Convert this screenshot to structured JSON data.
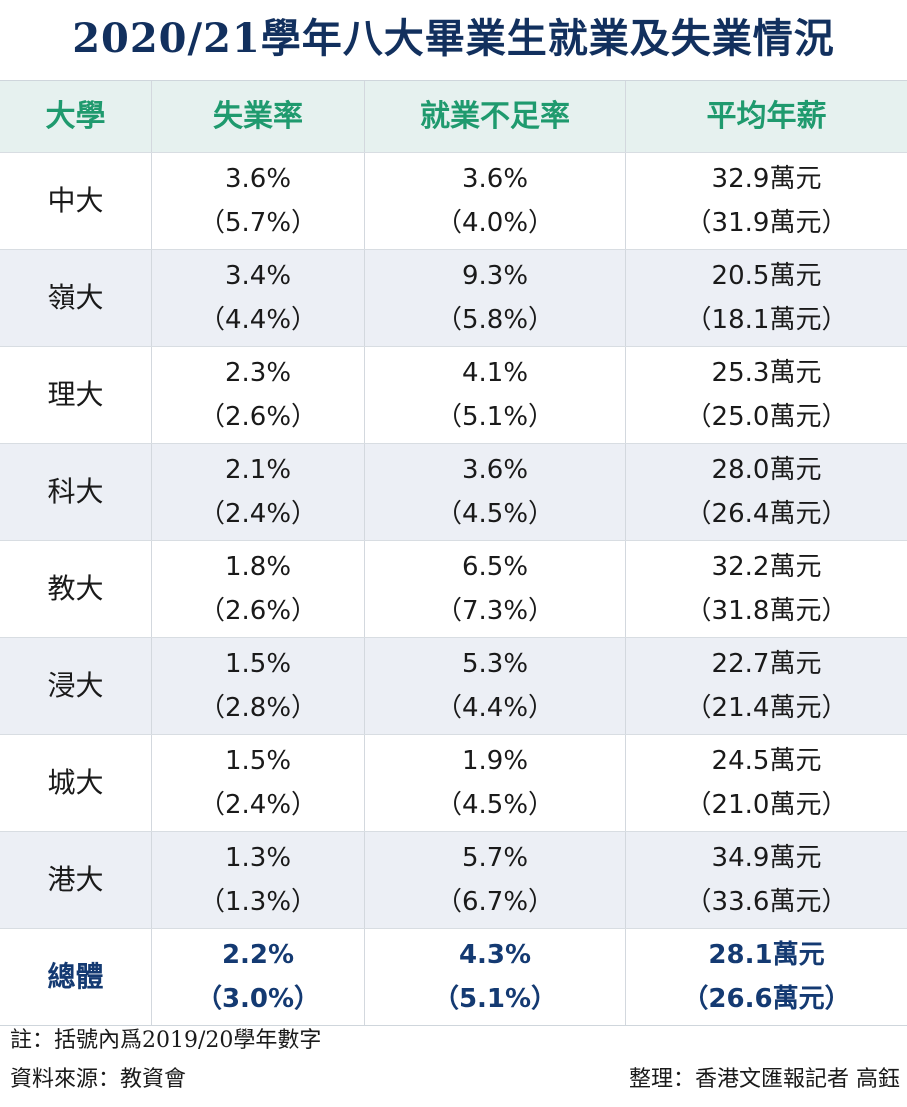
{
  "title": "2020/21學年八大畢業生就業及失業情況",
  "table": {
    "headers": [
      "大學",
      "失業率",
      "就業不足率",
      "平均年薪"
    ],
    "rows": [
      {
        "university": "中大",
        "unemployment": "3.6%",
        "unemployment_prev": "（5.7%）",
        "underemployment": "3.6%",
        "underemployment_prev": "（4.0%）",
        "salary": "32.9萬元",
        "salary_prev": "（31.9萬元）"
      },
      {
        "university": "嶺大",
        "unemployment": "3.4%",
        "unemployment_prev": "（4.4%）",
        "underemployment": "9.3%",
        "underemployment_prev": "（5.8%）",
        "salary": "20.5萬元",
        "salary_prev": "（18.1萬元）"
      },
      {
        "university": "理大",
        "unemployment": "2.3%",
        "unemployment_prev": "（2.6%）",
        "underemployment": "4.1%",
        "underemployment_prev": "（5.1%）",
        "salary": "25.3萬元",
        "salary_prev": "（25.0萬元）"
      },
      {
        "university": "科大",
        "unemployment": "2.1%",
        "unemployment_prev": "（2.4%）",
        "underemployment": "3.6%",
        "underemployment_prev": "（4.5%）",
        "salary": "28.0萬元",
        "salary_prev": "（26.4萬元）"
      },
      {
        "university": "教大",
        "unemployment": "1.8%",
        "unemployment_prev": "（2.6%）",
        "underemployment": "6.5%",
        "underemployment_prev": "（7.3%）",
        "salary": "32.2萬元",
        "salary_prev": "（31.8萬元）"
      },
      {
        "university": "浸大",
        "unemployment": "1.5%",
        "unemployment_prev": "（2.8%）",
        "underemployment": "5.3%",
        "underemployment_prev": "（4.4%）",
        "salary": "22.7萬元",
        "salary_prev": "（21.4萬元）"
      },
      {
        "university": "城大",
        "unemployment": "1.5%",
        "unemployment_prev": "（2.4%）",
        "underemployment": "1.9%",
        "underemployment_prev": "（4.5%）",
        "salary": "24.5萬元",
        "salary_prev": "（21.0萬元）"
      },
      {
        "university": "港大",
        "unemployment": "1.3%",
        "unemployment_prev": "（1.3%）",
        "underemployment": "5.7%",
        "underemployment_prev": "（6.7%）",
        "salary": "34.9萬元",
        "salary_prev": "（33.6萬元）"
      }
    ],
    "total": {
      "university": "總體",
      "unemployment": "2.2%",
      "unemployment_prev": "（3.0%）",
      "underemployment": "4.3%",
      "underemployment_prev": "（5.1%）",
      "salary": "28.1萬元",
      "salary_prev": "（26.6萬元）"
    }
  },
  "notes": {
    "note": "註：括號內爲2019/20學年數字",
    "source": "資料來源：教資會",
    "credit": "整理：香港文匯報記者 高鈺"
  }
}
